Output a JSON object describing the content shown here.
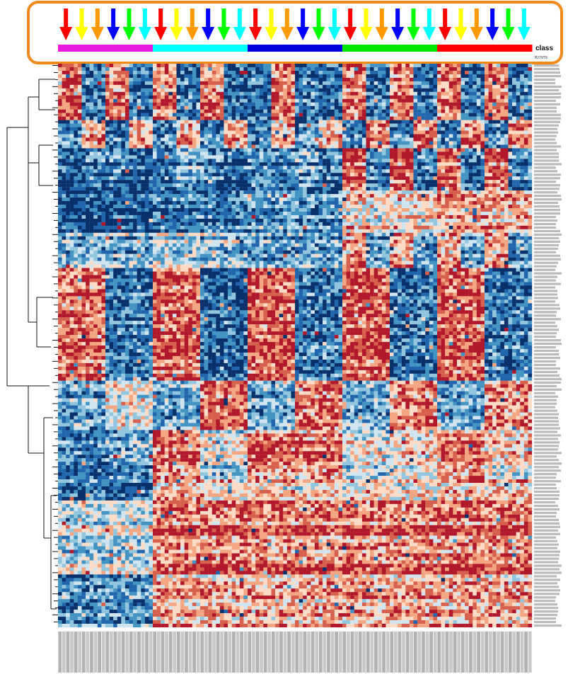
{
  "chart_data": {
    "type": "heatmap",
    "title": "",
    "xlabel": "",
    "ylabel": "",
    "annotation_track_label": "class",
    "first_row_label": "M279T8",
    "highlight_color": "#f08a1c",
    "class_groups": [
      {
        "color": "#e81ae0",
        "arrows": [
          "#ff0000",
          "#ffff00",
          "#ff9900",
          "#0000ff",
          "#00ff00",
          "#00ffff"
        ]
      },
      {
        "color": "#00ffff",
        "arrows": [
          "#ff0000",
          "#ffff00",
          "#ff9900",
          "#0000ff",
          "#00ff00",
          "#00ffff"
        ]
      },
      {
        "color": "#0000dd",
        "arrows": [
          "#ff0000",
          "#ffff00",
          "#ff9900",
          "#0000ff",
          "#00ff00",
          "#00ffff"
        ]
      },
      {
        "color": "#00e600",
        "arrows": [
          "#ff0000",
          "#ffff00",
          "#ff9900",
          "#0000ff",
          "#00ff00",
          "#00ffff"
        ]
      },
      {
        "color": "#ff0000",
        "arrows": [
          "#ff0000",
          "#ffff00",
          "#ff9900",
          "#0000ff",
          "#00ff00",
          "#00ffff"
        ]
      }
    ],
    "color_scale": [
      "#08306b",
      "#2166ac",
      "#4393c3",
      "#92c5de",
      "#d1e5f0",
      "#fddbc7",
      "#f4a582",
      "#d6604d",
      "#b2182b"
    ],
    "n_columns": 120,
    "n_rows": 160,
    "grid": false,
    "legend": "none"
  }
}
